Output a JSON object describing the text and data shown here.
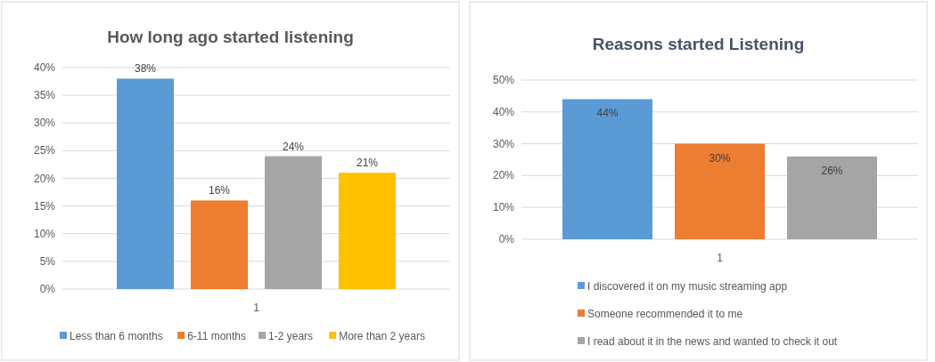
{
  "chart_data": [
    {
      "type": "bar",
      "title": "How long ago started listening",
      "categories": [
        "1"
      ],
      "series": [
        {
          "name": "Less than 6 months",
          "color": "#5b9bd5",
          "values": [
            38
          ]
        },
        {
          "name": "6-11 months",
          "color": "#ed7d31",
          "values": [
            16
          ]
        },
        {
          "name": "1-2 years",
          "color": "#a5a5a5",
          "values": [
            24
          ]
        },
        {
          "name": "More than 2 years",
          "color": "#ffc000",
          "values": [
            21
          ]
        }
      ],
      "ylim": [
        0,
        40
      ],
      "yticks": [
        {
          "value": 0,
          "label": "0%"
        },
        {
          "value": 5,
          "label": "5%"
        },
        {
          "value": 10,
          "label": "10%"
        },
        {
          "value": 15,
          "label": "15%"
        },
        {
          "value": 20,
          "label": "20%"
        },
        {
          "value": 25,
          "label": "25%"
        },
        {
          "value": 30,
          "label": "30%"
        },
        {
          "value": 35,
          "label": "35%"
        },
        {
          "value": 40,
          "label": "40%"
        }
      ],
      "grid": "y",
      "legend": "bottom",
      "value_labels": [
        "38%",
        "16%",
        "24%",
        "21%"
      ]
    },
    {
      "type": "bar",
      "title": "Reasons started Listening",
      "categories": [
        "1"
      ],
      "series": [
        {
          "name": "I discovered it on my music streaming app",
          "color": "#5b9bd5",
          "values": [
            44
          ]
        },
        {
          "name": "Someone recommended it to me",
          "color": "#ed7d31",
          "values": [
            30
          ]
        },
        {
          "name": "I read about it in the news and wanted to check it out",
          "color": "#a5a5a5",
          "values": [
            26
          ]
        }
      ],
      "ylim": [
        0,
        50
      ],
      "yticks": [
        {
          "value": 0,
          "label": "0%"
        },
        {
          "value": 10,
          "label": "10%"
        },
        {
          "value": 20,
          "label": "20%"
        },
        {
          "value": 30,
          "label": "30%"
        },
        {
          "value": 40,
          "label": "40%"
        },
        {
          "value": 50,
          "label": "50%"
        }
      ],
      "grid": "y",
      "legend": "bottom",
      "value_labels": [
        "44%",
        "30%",
        "26%"
      ]
    }
  ]
}
